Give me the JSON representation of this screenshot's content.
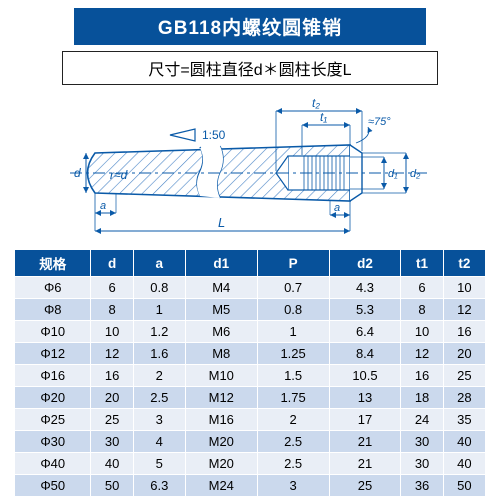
{
  "header": {
    "title": "GB118内螺纹圆锥销",
    "subtitle": "尺寸=圆柱直径d＊圆柱长度L"
  },
  "diagram": {
    "taper_label": "1:50",
    "angle_label": "≈75°",
    "r_label": "r≈d",
    "L_label": "L",
    "a_label": "a",
    "d_label": "d",
    "d1_label": "d₁",
    "d2_label": "d₂",
    "t1_label": "t₁",
    "t2_label": "t₂",
    "stroke": "#0a5aa8",
    "hatch": "#4a85c6",
    "fill": "#e7eef9"
  },
  "table": {
    "header_bg": "#07519a",
    "header_fg": "#ffffff",
    "row_even_bg": "#e9eef6",
    "row_odd_bg": "#cbd9ed",
    "columns": [
      "规格",
      "d",
      "a",
      "d1",
      "P",
      "d2",
      "t1",
      "t2"
    ],
    "rows": [
      [
        "Φ6",
        "6",
        "0.8",
        "M4",
        "0.7",
        "4.3",
        "6",
        "10"
      ],
      [
        "Φ8",
        "8",
        "1",
        "M5",
        "0.8",
        "5.3",
        "8",
        "12"
      ],
      [
        "Φ10",
        "10",
        "1.2",
        "M6",
        "1",
        "6.4",
        "10",
        "16"
      ],
      [
        "Φ12",
        "12",
        "1.6",
        "M8",
        "1.25",
        "8.4",
        "12",
        "20"
      ],
      [
        "Φ16",
        "16",
        "2",
        "M10",
        "1.5",
        "10.5",
        "16",
        "25"
      ],
      [
        "Φ20",
        "20",
        "2.5",
        "M12",
        "1.75",
        "13",
        "18",
        "28"
      ],
      [
        "Φ25",
        "25",
        "3",
        "M16",
        "2",
        "17",
        "24",
        "35"
      ],
      [
        "Φ30",
        "30",
        "4",
        "M20",
        "2.5",
        "21",
        "30",
        "40"
      ],
      [
        "Φ40",
        "40",
        "5",
        "M20",
        "2.5",
        "21",
        "30",
        "40"
      ],
      [
        "Φ50",
        "50",
        "6.3",
        "M24",
        "3",
        "25",
        "36",
        "50"
      ]
    ]
  }
}
